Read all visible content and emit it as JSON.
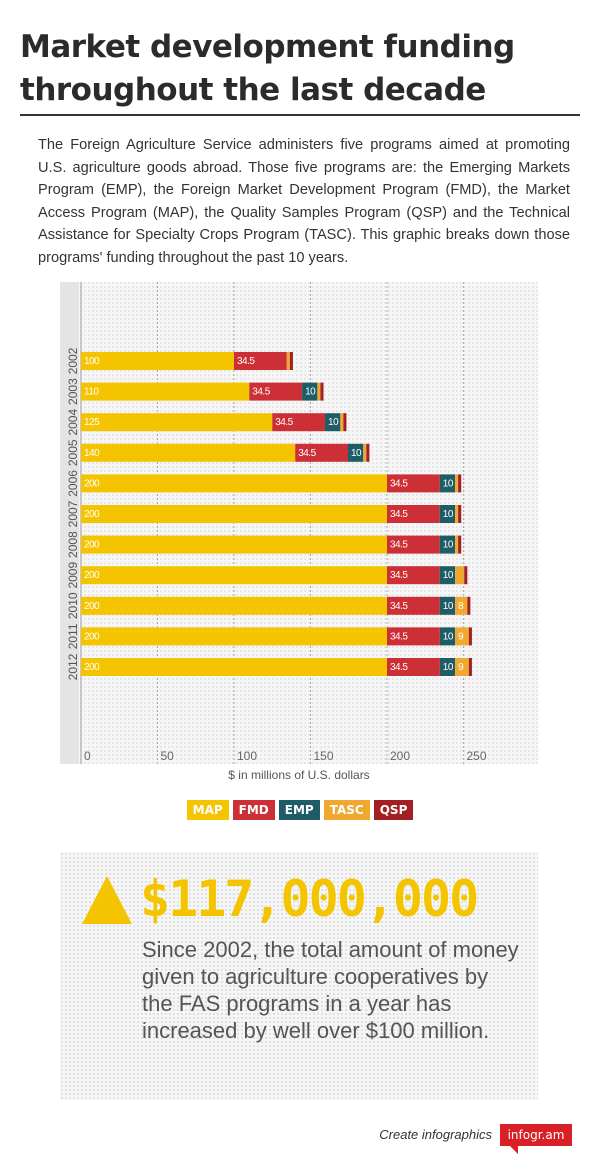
{
  "title": "Market development funding throughout the last decade",
  "intro": "The Foreign Agriculture Service administers five programs aimed at promoting U.S. agriculture goods abroad. Those five programs are: the Emerging Markets Program (EMP), the Foreign Market Development Program (FMD), the Market Access Program (MAP), the Quality Samples Program (QSP) and the Technical Assistance for Specialty Crops Program (TASC). This graphic breaks down those programs' funding throughout the past 10 years.",
  "chart_data": {
    "type": "bar",
    "orientation": "horizontal",
    "stacked": true,
    "categories": [
      "2002",
      "2003",
      "2004",
      "2005",
      "2006",
      "2007",
      "2008",
      "2009",
      "2010",
      "2011",
      "2012"
    ],
    "xlabel": "$ in millions of U.S. dollars",
    "xlim": [
      0,
      250
    ],
    "xticks": [
      "0",
      "50",
      "100",
      "150",
      "200",
      "250"
    ],
    "grid": true,
    "legend_position": "bottom",
    "series": [
      {
        "name": "MAP",
        "color": "#f5c400",
        "values": [
          100,
          110,
          125,
          140,
          200,
          200,
          200,
          200,
          200,
          200,
          200
        ],
        "labels": [
          "100",
          "110",
          "125",
          "140",
          "200",
          "200",
          "200",
          "200",
          "200",
          "200",
          "200"
        ]
      },
      {
        "name": "FMD",
        "color": "#cc2f36",
        "values": [
          34.5,
          34.5,
          34.5,
          34.5,
          34.5,
          34.5,
          34.5,
          34.5,
          34.5,
          34.5,
          34.5
        ],
        "labels": [
          "34.5",
          "34.5",
          "34.5",
          "34.5",
          "34.5",
          "34.5",
          "34.5",
          "34.5",
          "34.5",
          "34.5",
          "34.5"
        ]
      },
      {
        "name": "EMP",
        "color": "#1e5c66",
        "values": [
          0,
          10,
          10,
          10,
          10,
          10,
          10,
          10,
          10,
          10,
          10
        ],
        "labels": [
          "",
          "10",
          "10",
          "10",
          "10",
          "10",
          "10",
          "10",
          "10",
          "10",
          "10"
        ]
      },
      {
        "name": "TASC",
        "color": "#f0a830",
        "values": [
          2,
          2,
          2,
          2,
          2,
          2,
          2,
          6,
          8,
          9,
          9
        ],
        "labels": [
          "",
          "",
          "",
          "",
          "",
          "",
          "",
          "",
          "8",
          "9",
          "9"
        ]
      },
      {
        "name": "QSP",
        "color": "#a31f24",
        "values": [
          2,
          2,
          2,
          2,
          2,
          2,
          2,
          2,
          2,
          2,
          2
        ],
        "labels": [
          "",
          "",
          "",
          "",
          "",
          "",
          "",
          "",
          "",
          "",
          ""
        ]
      }
    ]
  },
  "callout": {
    "icon": "up-triangle-icon",
    "accent_color": "#f5c400",
    "amount": "$117,000,000",
    "text": "Since 2002, the total amount of money given to agriculture cooperatives by the FAS programs in a year has increased by well over $100 million."
  },
  "footer": {
    "text": "Create infographics",
    "logo": "infogr.am"
  }
}
